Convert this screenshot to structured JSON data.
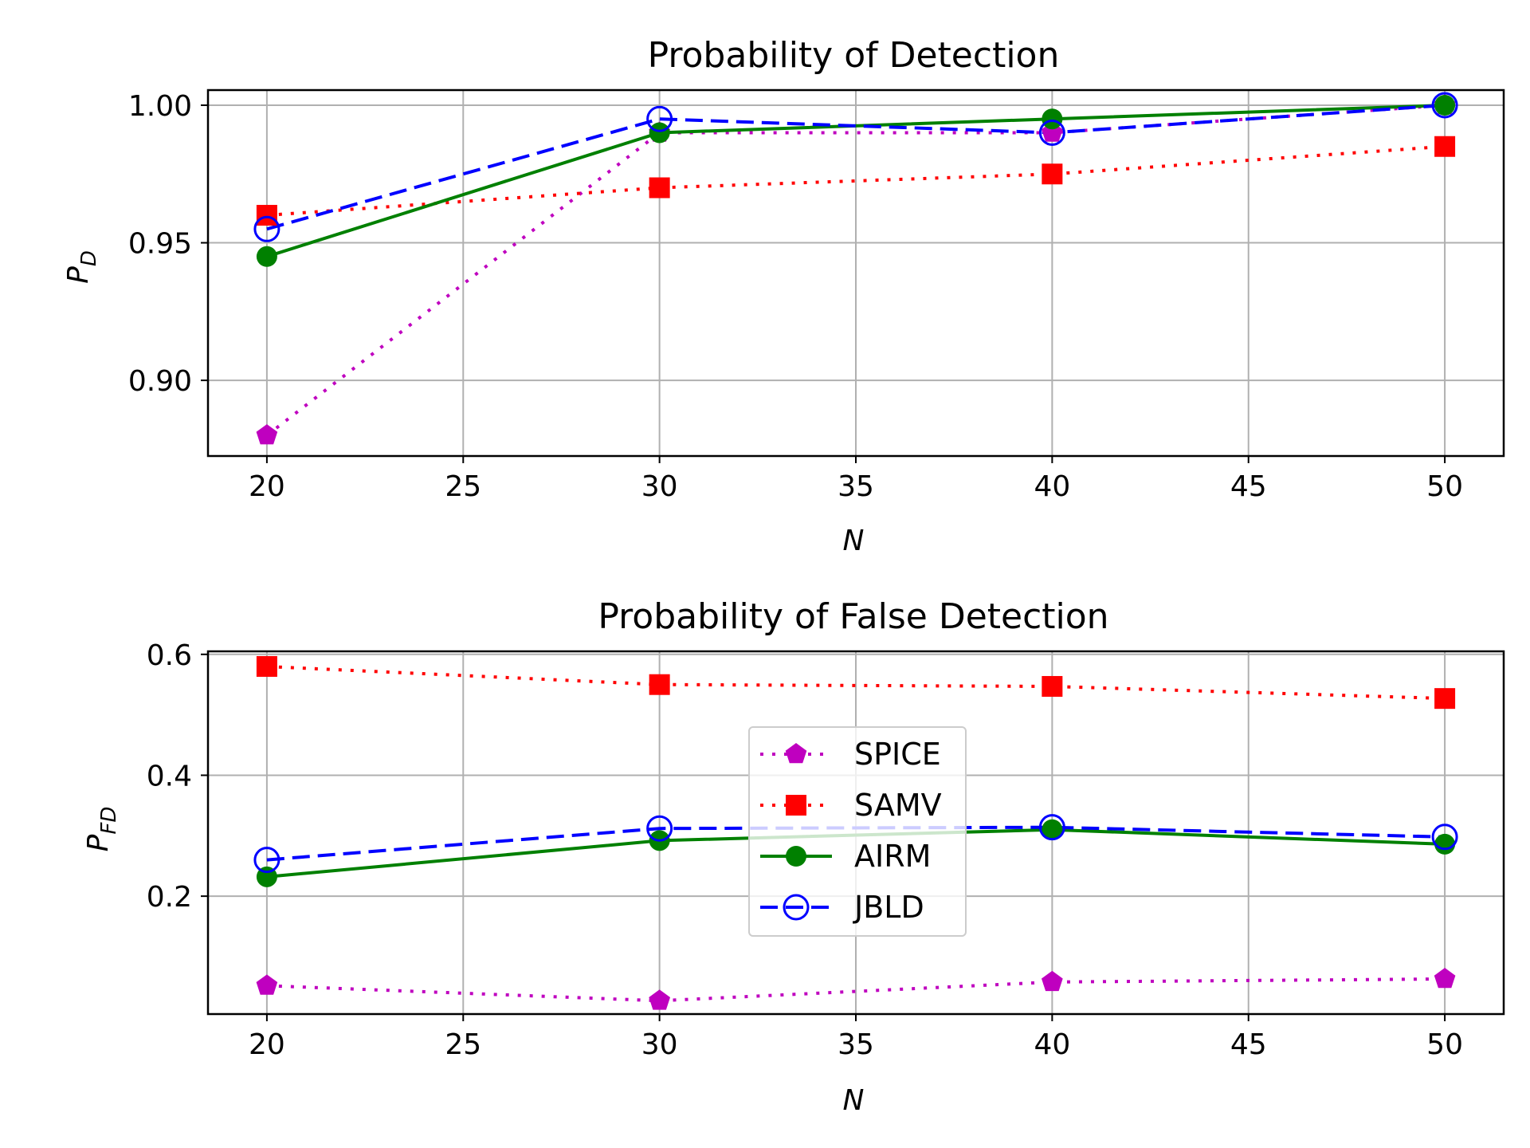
{
  "chart_data": [
    {
      "type": "line",
      "title": "Probability of Detection",
      "xlabel": "N",
      "ylabel_main": "P",
      "ylabel_sub": "D",
      "x": [
        20,
        30,
        40,
        50
      ],
      "xlim": [
        18.5,
        51.5
      ],
      "ylim": [
        0.8725,
        1.0055
      ],
      "xticks": [
        20,
        25,
        30,
        35,
        40,
        45,
        50
      ],
      "xtick_labels": [
        "20",
        "25",
        "30",
        "35",
        "40",
        "45",
        "50"
      ],
      "yticks": [
        0.9,
        0.95,
        1.0
      ],
      "ytick_labels": [
        "0.90",
        "0.95",
        "1.00"
      ],
      "grid": true,
      "series": [
        {
          "name": "SPICE",
          "values": [
            0.88,
            0.99,
            0.99,
            1.0
          ],
          "color": "#bf00bf",
          "linestyle": "dotted",
          "marker": "pentagon"
        },
        {
          "name": "SAMV",
          "values": [
            0.96,
            0.97,
            0.975,
            0.985
          ],
          "color": "#ff0000",
          "linestyle": "dotted",
          "marker": "square"
        },
        {
          "name": "AIRM",
          "values": [
            0.945,
            0.99,
            0.995,
            1.0
          ],
          "color": "#008000",
          "linestyle": "solid",
          "marker": "circle"
        },
        {
          "name": "JBLD",
          "values": [
            0.955,
            0.995,
            0.99,
            1.0
          ],
          "color": "#0000ff",
          "linestyle": "dashed",
          "marker": "open-circle"
        }
      ]
    },
    {
      "type": "line",
      "title": "Probability of False Detection",
      "xlabel": "N",
      "ylabel_main": "P",
      "ylabel_sub": "FD",
      "x": [
        20,
        30,
        40,
        50
      ],
      "xlim": [
        18.5,
        51.5
      ],
      "ylim": [
        0.005,
        0.605
      ],
      "xticks": [
        20,
        25,
        30,
        35,
        40,
        45,
        50
      ],
      "xtick_labels": [
        "20",
        "25",
        "30",
        "35",
        "40",
        "45",
        "50"
      ],
      "yticks": [
        0.2,
        0.4,
        0.6
      ],
      "ytick_labels": [
        "0.2",
        "0.4",
        "0.6"
      ],
      "grid": true,
      "legend": "center",
      "series": [
        {
          "name": "SPICE",
          "values": [
            0.052,
            0.027,
            0.058,
            0.063
          ],
          "color": "#bf00bf",
          "linestyle": "dotted",
          "marker": "pentagon"
        },
        {
          "name": "SAMV",
          "values": [
            0.58,
            0.55,
            0.547,
            0.527
          ],
          "color": "#ff0000",
          "linestyle": "dotted",
          "marker": "square"
        },
        {
          "name": "AIRM",
          "values": [
            0.232,
            0.292,
            0.31,
            0.286
          ],
          "color": "#008000",
          "linestyle": "solid",
          "marker": "circle"
        },
        {
          "name": "JBLD",
          "values": [
            0.26,
            0.312,
            0.314,
            0.298
          ],
          "color": "#0000ff",
          "linestyle": "dashed",
          "marker": "open-circle"
        }
      ]
    }
  ]
}
